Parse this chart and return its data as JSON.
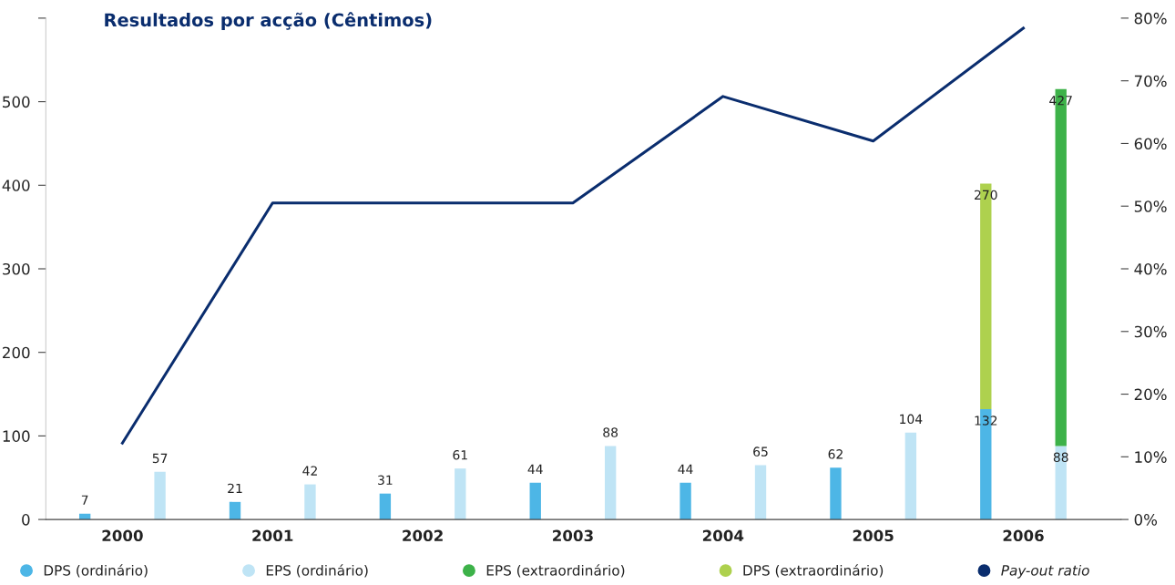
{
  "chart_data": {
    "type": "bar",
    "title": "Resultados por acção (Cêntimos)",
    "categories": [
      "2000",
      "2001",
      "2002",
      "2003",
      "2004",
      "2005",
      "2006"
    ],
    "series": [
      {
        "name": "DPS (ordinário)",
        "color": "#4db6e6",
        "values": [
          7,
          21,
          31,
          44,
          44,
          62,
          132
        ],
        "value_labels": [
          "7",
          "21",
          "31",
          "44",
          "44",
          "62",
          "132"
        ]
      },
      {
        "name": "EPS (ordinário)",
        "color": "#bfe4f5",
        "values": [
          57,
          42,
          61,
          88,
          65,
          104,
          88
        ],
        "value_labels": [
          "57",
          "42",
          "61",
          "88",
          "65",
          "104",
          "88"
        ]
      },
      {
        "name": "EPS (extraordinário)",
        "color": "#3db249",
        "values": [
          null,
          null,
          null,
          null,
          null,
          null,
          427
        ],
        "base": [
          null,
          null,
          null,
          null,
          null,
          null,
          88
        ],
        "value_labels": [
          null,
          null,
          null,
          null,
          null,
          null,
          "427"
        ]
      },
      {
        "name": "DPS (extraordinário)",
        "color": "#aed14e",
        "values": [
          null,
          null,
          null,
          null,
          null,
          null,
          270
        ],
        "base": [
          null,
          null,
          null,
          null,
          null,
          null,
          132
        ],
        "value_labels": [
          null,
          null,
          null,
          null,
          null,
          null,
          "270"
        ]
      },
      {
        "name": "Pay-out ratio",
        "type": "line",
        "axis": "y2",
        "color": "#0a2d6e",
        "values": [
          12.2,
          50.5,
          50.5,
          50.5,
          67.5,
          60.4,
          78.4
        ]
      }
    ],
    "ylim": [
      0,
      600
    ],
    "yticks": [
      0,
      100,
      200,
      300,
      400,
      500,
      {
        "value": 600,
        "label": null
      }
    ],
    "y2lim": [
      0,
      80
    ],
    "y2ticks": [
      {
        "value": 0,
        "label": "0%"
      },
      {
        "value": 10,
        "label": "10%"
      },
      {
        "value": 20,
        "label": "20%"
      },
      {
        "value": 30,
        "label": "30%"
      },
      {
        "value": 40,
        "label": "40%"
      },
      {
        "value": 50,
        "label": "50%"
      },
      {
        "value": 60,
        "label": "60%"
      },
      {
        "value": 70,
        "label": "70%"
      },
      {
        "value": 80,
        "label": "80%"
      }
    ],
    "grid": false,
    "legend": "bottom",
    "marker": "none",
    "line_style": "solid"
  }
}
